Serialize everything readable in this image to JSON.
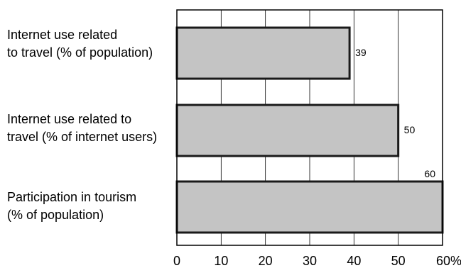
{
  "chart_data": {
    "type": "bar",
    "orientation": "horizontal",
    "categories": [
      [
        "Internet use related",
        "to travel (% of population)"
      ],
      [
        "Internet use related to",
        "travel (% of internet users)"
      ],
      [
        "Participation in tourism",
        "(% of population)"
      ]
    ],
    "values": [
      39,
      50,
      60
    ],
    "data_labels": [
      "39",
      "50",
      "60"
    ],
    "x_ticks": [
      "0",
      "10",
      "20",
      "30",
      "40",
      "50",
      "60%"
    ],
    "xlim": [
      0,
      60
    ],
    "grid": "vertical",
    "title": "",
    "xlabel": "",
    "ylabel": ""
  },
  "colors": {
    "bar_fill": "#c4c4c4",
    "bar_stroke": "#1a1a1a",
    "grid": "#000000",
    "frame": "#000000",
    "text": "#000000"
  }
}
